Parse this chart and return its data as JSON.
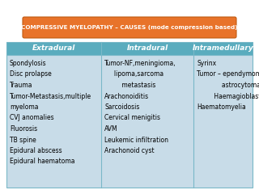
{
  "title": "COMPRESSIVE MYELOPATHY – CAUSES (mode compression based)",
  "title_bg": "#e8732a",
  "title_text_color": "white",
  "table_bg": "#c8dce8",
  "header_bg": "#5aacbe",
  "header_text_color": "white",
  "outer_bg": "#ffffff",
  "border_color": "#7ab8c8",
  "headers": [
    "Extradural",
    "Intradural",
    "Intramedullary"
  ],
  "col1": [
    "Spondylosis",
    "Disc prolapse",
    "Trauma",
    "Tumor-Metastasis,multiple",
    "myeloma",
    "CVJ anomalies",
    "Fluorosis",
    "TB spine",
    "Epidural abscess",
    "Epidural haematoma"
  ],
  "col2_lines": [
    [
      "Tumor-NF,meningioma,",
      0
    ],
    [
      "lipoma,sarcoma",
      0.08
    ],
    [
      "metastasis",
      0.14
    ],
    [
      "Arachonoiditis",
      0
    ],
    [
      "Sarcoidosis",
      0
    ],
    [
      "Cervical menigitis",
      0
    ],
    [
      "AVM",
      0
    ],
    [
      "Leukemic infiltration",
      0
    ],
    [
      "Arachonoid cyst",
      0
    ]
  ],
  "col3_lines": [
    [
      "Syrinx",
      0
    ],
    [
      "Tumor – ependymoma",
      0
    ],
    [
      "astrocytoma",
      0.12
    ],
    [
      "Haemagioblastoma",
      0.08
    ],
    [
      "Haematomyelia",
      0
    ]
  ],
  "fig_w": 3.2,
  "fig_h": 2.4,
  "dpi": 100
}
